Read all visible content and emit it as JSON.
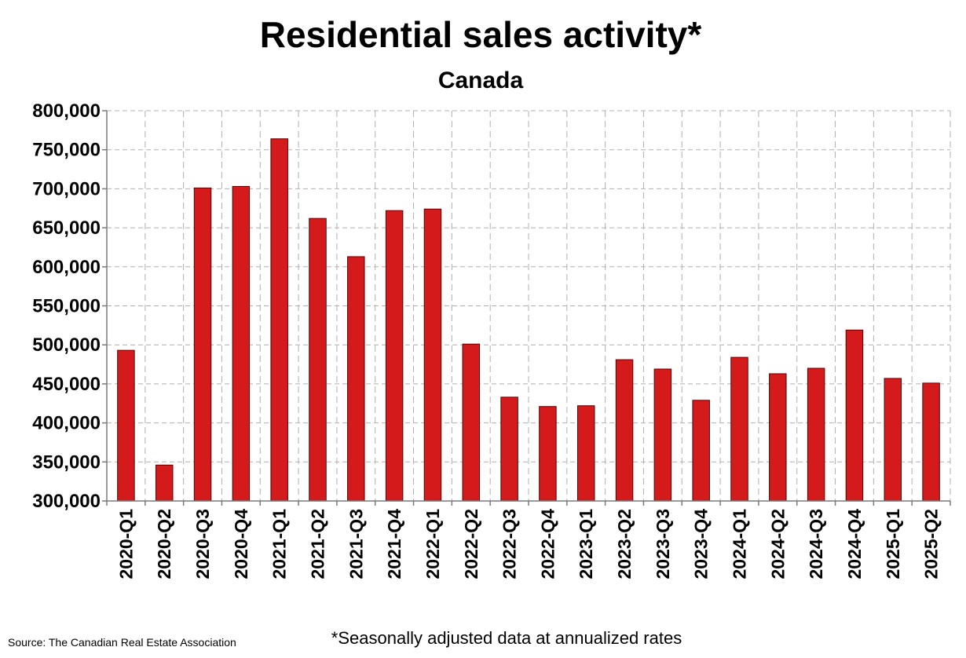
{
  "chart_data": {
    "type": "bar",
    "title": "Residential sales activity*",
    "subtitle": "Canada",
    "xlabel": "",
    "ylabel": "",
    "ylim": [
      300000,
      800000
    ],
    "y_ticks": [
      "300,000",
      "350,000",
      "400,000",
      "450,000",
      "500,000",
      "550,000",
      "600,000",
      "650,000",
      "700,000",
      "750,000",
      "800,000"
    ],
    "grid": true,
    "legend": "none",
    "bar_color": "#d41a1a",
    "categories": [
      "2020-Q1",
      "2020-Q2",
      "2020-Q3",
      "2020-Q4",
      "2021-Q1",
      "2021-Q2",
      "2021-Q3",
      "2021-Q4",
      "2022-Q1",
      "2022-Q2",
      "2022-Q3",
      "2022-Q4",
      "2023-Q1",
      "2023-Q2",
      "2023-Q3",
      "2023-Q4",
      "2024-Q1",
      "2024-Q2",
      "2024-Q3",
      "2024-Q4",
      "2025-Q1",
      "2025-Q2"
    ],
    "values": [
      493000,
      346000,
      701000,
      703000,
      764000,
      662000,
      613000,
      672000,
      674000,
      501000,
      433000,
      421000,
      422000,
      481000,
      469000,
      429000,
      484000,
      463000,
      470000,
      519000,
      457000,
      451000
    ]
  },
  "footnote": "*Seasonally adjusted data at annualized rates",
  "source": "Source: The Canadian Real Estate Association"
}
